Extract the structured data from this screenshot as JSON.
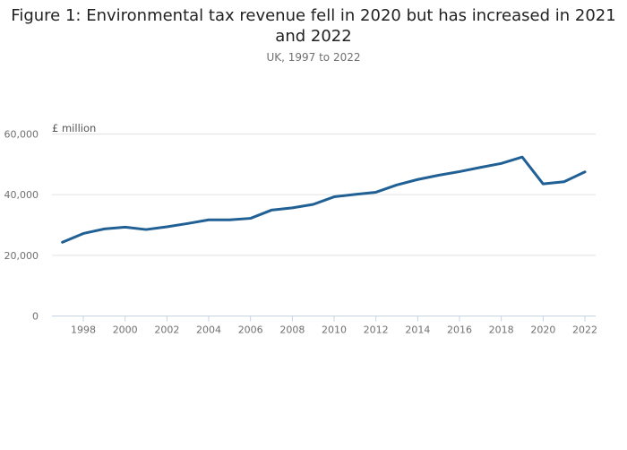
{
  "chart_data": {
    "type": "line",
    "title": "Figure 1: Environmental tax revenue fell in 2020 but has increased in 2021 and 2022",
    "subtitle": "UK, 1997 to 2022",
    "xlabel": "",
    "ylabel": "£ million",
    "ylim": [
      0,
      60000
    ],
    "xlim": [
      1997,
      2022
    ],
    "yticks": [
      0,
      20000,
      40000,
      60000
    ],
    "ytick_labels": [
      "0",
      "20,000",
      "40,000",
      "60,000"
    ],
    "xticks": [
      1998,
      2000,
      2002,
      2004,
      2006,
      2008,
      2010,
      2012,
      2014,
      2016,
      2018,
      2020,
      2022
    ],
    "xtick_labels": [
      "1998",
      "2000",
      "2002",
      "2004",
      "2006",
      "2008",
      "2010",
      "2012",
      "2014",
      "2016",
      "2018",
      "2020",
      "2022"
    ],
    "grid": true,
    "legend": "none",
    "x": [
      1997,
      1998,
      1999,
      2000,
      2001,
      2002,
      2003,
      2004,
      2005,
      2006,
      2007,
      2008,
      2009,
      2010,
      2011,
      2012,
      2013,
      2014,
      2015,
      2016,
      2017,
      2018,
      2019,
      2020,
      2021,
      2022
    ],
    "series": [
      {
        "name": "Environmental tax revenue",
        "color": "#206095",
        "values": [
          24300,
          27200,
          28700,
          29300,
          28500,
          29400,
          30500,
          31700,
          31700,
          32200,
          34900,
          35650,
          36800,
          39300,
          40100,
          40800,
          43200,
          45000,
          46400,
          47600,
          49000,
          50300,
          52400,
          43550,
          44250,
          47500
        ]
      }
    ]
  },
  "colors": {
    "line": "#206095",
    "grid": "#e2e2e2",
    "axis": "#c5d3e3",
    "tick_text": "#707070"
  }
}
